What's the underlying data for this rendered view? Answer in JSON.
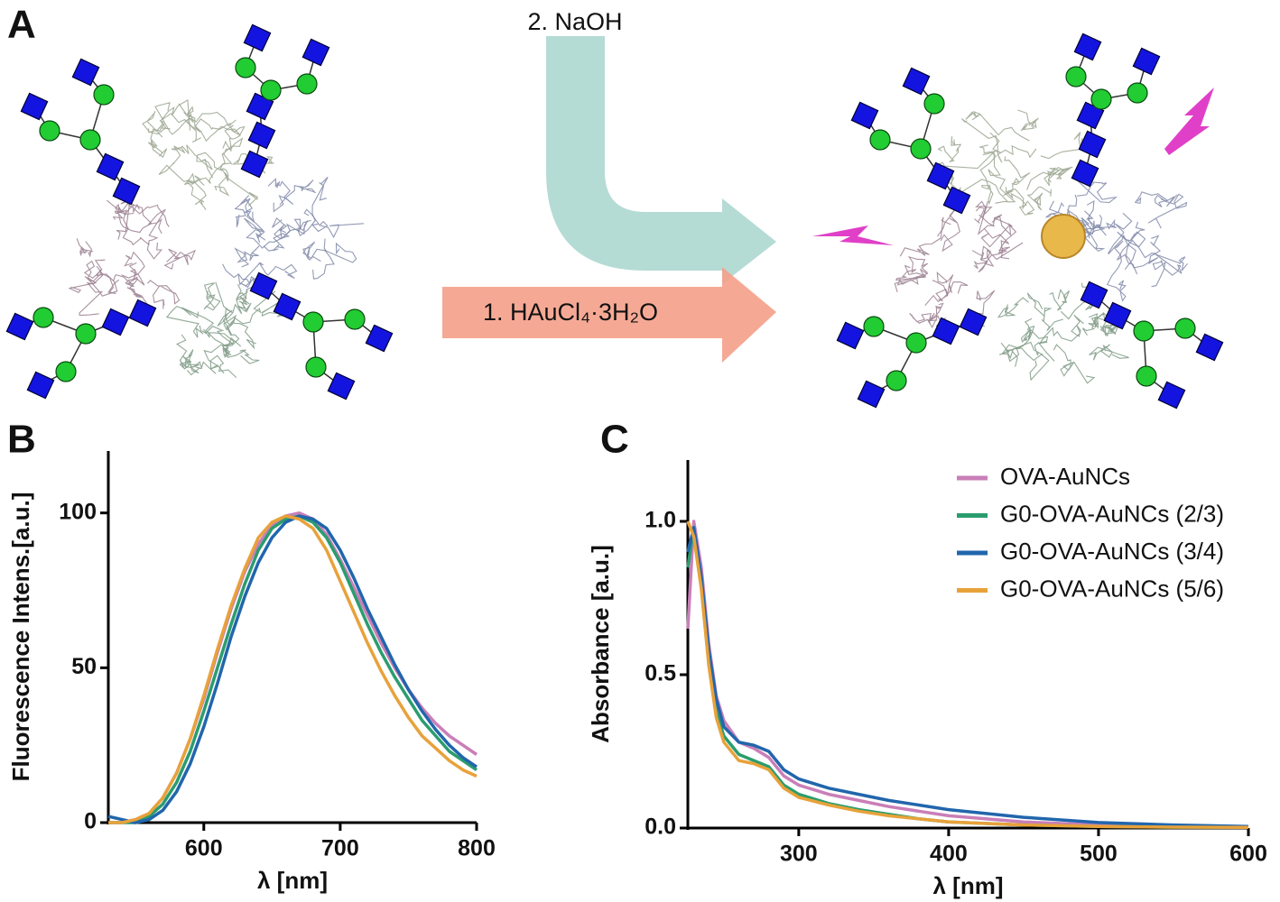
{
  "figure": {
    "panels": [
      "A",
      "B",
      "C"
    ],
    "reagents": [
      "2. NaOH",
      "1. HAuCl₄·3H₂O"
    ]
  },
  "chart_data": [
    {
      "type": "line",
      "x_label": "λ [nm]",
      "y_label": "Fluorescence Intens.[a.u.]",
      "x": [
        530,
        540,
        550,
        560,
        570,
        580,
        590,
        600,
        610,
        620,
        630,
        640,
        650,
        660,
        670,
        680,
        690,
        700,
        710,
        720,
        730,
        740,
        750,
        760,
        770,
        780,
        790,
        800
      ],
      "xlim": [
        530,
        800
      ],
      "xticks": [
        600,
        700,
        800
      ],
      "ylim": [
        0,
        120
      ],
      "yticks": [
        0,
        50,
        100
      ],
      "series": [
        {
          "color": "#c97fb8",
          "values": [
            0,
            0,
            1,
            3,
            8,
            16,
            27,
            40,
            55,
            69,
            81,
            90,
            96,
            99,
            100,
            98,
            93,
            85,
            76,
            67,
            58,
            50,
            43,
            37,
            32,
            28,
            25,
            22
          ]
        },
        {
          "color": "#2a9d6e",
          "values": [
            0,
            0,
            0,
            2,
            6,
            13,
            23,
            36,
            50,
            64,
            77,
            88,
            95,
            98,
            99,
            97,
            92,
            84,
            74,
            64,
            55,
            47,
            40,
            33,
            28,
            23,
            20,
            17
          ]
        },
        {
          "color": "#2166ac",
          "values": [
            2,
            1,
            0,
            1,
            4,
            10,
            19,
            31,
            45,
            60,
            73,
            84,
            92,
            97,
            99,
            98,
            95,
            88,
            79,
            69,
            60,
            51,
            43,
            36,
            30,
            25,
            21,
            18
          ]
        },
        {
          "color": "#e8a23a",
          "values": [
            0,
            0,
            1,
            3,
            8,
            16,
            27,
            41,
            56,
            70,
            82,
            92,
            97,
            99,
            98,
            95,
            88,
            78,
            68,
            58,
            49,
            41,
            34,
            28,
            24,
            20,
            17,
            15
          ]
        }
      ]
    },
    {
      "type": "line",
      "x_label": "λ [nm]",
      "y_label": "Absorbance [a.u.]",
      "x": [
        226,
        230,
        235,
        240,
        245,
        250,
        260,
        270,
        280,
        290,
        300,
        320,
        340,
        360,
        380,
        400,
        450,
        500,
        550,
        600
      ],
      "xlim": [
        226,
        600
      ],
      "xticks": [
        300,
        400,
        500,
        600
      ],
      "ylim": [
        0,
        1.2
      ],
      "yticks": [
        {
          "value": 0,
          "label": "0.0"
        },
        0.5,
        {
          "value": 1,
          "label": "1.0"
        }
      ],
      "series": [
        {
          "name": "OVA-AuNCs",
          "color": "#c97fb8",
          "values": [
            0.65,
            1.0,
            0.85,
            0.6,
            0.43,
            0.35,
            0.28,
            0.26,
            0.23,
            0.17,
            0.14,
            0.11,
            0.09,
            0.07,
            0.055,
            0.04,
            0.02,
            0.01,
            0.005,
            0.003
          ]
        },
        {
          "name": "G0-OVA-AuNCs (2/3)",
          "color": "#2a9d6e",
          "values": [
            0.85,
            0.98,
            0.8,
            0.55,
            0.38,
            0.3,
            0.24,
            0.22,
            0.2,
            0.14,
            0.11,
            0.08,
            0.06,
            0.045,
            0.03,
            0.02,
            0.01,
            0.005,
            0.003,
            0.002
          ]
        },
        {
          "name": "G0-OVA-AuNCs (3/4)",
          "color": "#2166ac",
          "values": [
            0.9,
            0.98,
            0.82,
            0.58,
            0.42,
            0.33,
            0.28,
            0.27,
            0.25,
            0.19,
            0.16,
            0.13,
            0.11,
            0.09,
            0.075,
            0.06,
            0.035,
            0.018,
            0.01,
            0.005
          ]
        },
        {
          "name": "G0-OVA-AuNCs (5/6)",
          "color": "#e8a23a",
          "values": [
            1.0,
            0.95,
            0.78,
            0.53,
            0.36,
            0.28,
            0.22,
            0.21,
            0.19,
            0.13,
            0.1,
            0.075,
            0.055,
            0.04,
            0.03,
            0.02,
            0.01,
            0.005,
            0.003,
            0.002
          ]
        }
      ]
    }
  ]
}
